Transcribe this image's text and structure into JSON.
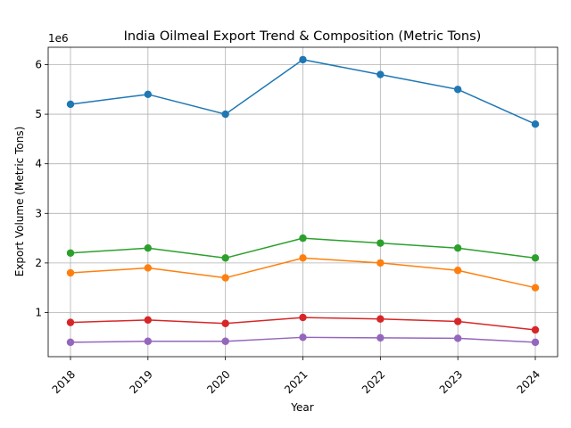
{
  "chart_data": {
    "type": "line",
    "title": "India Oilmeal Export Trend & Composition (Metric Tons)",
    "xlabel": "Year",
    "ylabel": "Export Volume (Metric Tons)",
    "y_offset_label": "1e6",
    "categories": [
      "2018",
      "2019",
      "2020",
      "2021",
      "2022",
      "2023",
      "2024"
    ],
    "y_ticks": [
      1000000,
      2000000,
      3000000,
      4000000,
      5000000,
      6000000
    ],
    "y_tick_labels": [
      "1",
      "2",
      "3",
      "4",
      "5",
      "6"
    ],
    "ylim": [
      110000,
      6350000
    ],
    "grid": true,
    "series": [
      {
        "color": "#1f77b4",
        "values": [
          5200000,
          5400000,
          5000000,
          6100000,
          5800000,
          5500000,
          4800000
        ]
      },
      {
        "color": "#ff7f0e",
        "values": [
          1800000,
          1900000,
          1700000,
          2100000,
          2000000,
          1850000,
          1500000
        ]
      },
      {
        "color": "#2ca02c",
        "values": [
          2200000,
          2300000,
          2100000,
          2500000,
          2400000,
          2300000,
          2100000
        ]
      },
      {
        "color": "#d62728",
        "values": [
          800000,
          850000,
          780000,
          900000,
          870000,
          820000,
          650000
        ]
      },
      {
        "color": "#9467bd",
        "values": [
          400000,
          420000,
          420000,
          500000,
          490000,
          480000,
          400000
        ]
      }
    ]
  }
}
